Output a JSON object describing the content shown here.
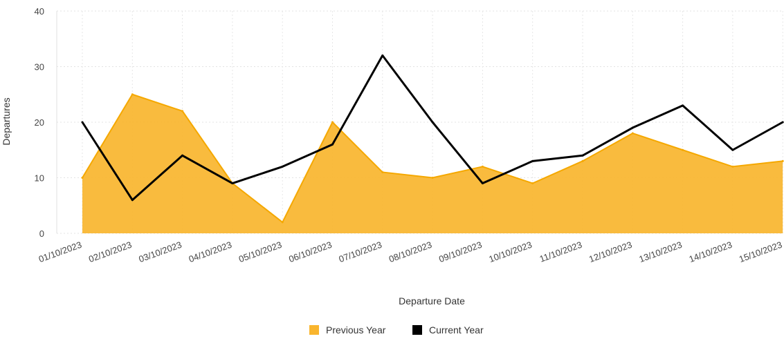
{
  "chart_data": {
    "type": "area",
    "categories": [
      "01/10/2023",
      "02/10/2023",
      "03/10/2023",
      "04/10/2023",
      "05/10/2023",
      "06/10/2023",
      "07/10/2023",
      "08/10/2023",
      "09/10/2023",
      "10/10/2023",
      "11/10/2023",
      "12/10/2023",
      "13/10/2023",
      "14/10/2023",
      "15/10/2023"
    ],
    "series": [
      {
        "name": "Previous Year",
        "kind": "area",
        "color": "#f9b52e",
        "values": [
          10,
          25,
          22,
          9,
          2,
          20,
          11,
          10,
          12,
          9,
          13,
          18,
          15,
          12,
          13
        ]
      },
      {
        "name": "Current Year",
        "kind": "line",
        "color": "#000000",
        "values": [
          20,
          6,
          14,
          9,
          12,
          16,
          32,
          20,
          9,
          13,
          14,
          19,
          23,
          15,
          20
        ]
      }
    ],
    "xlabel": "Departure Date",
    "ylabel": "Departures",
    "ylim": [
      0,
      40
    ],
    "yticks": [
      0,
      10,
      20,
      30,
      40
    ],
    "grid": true,
    "legend": "bottom-center"
  }
}
